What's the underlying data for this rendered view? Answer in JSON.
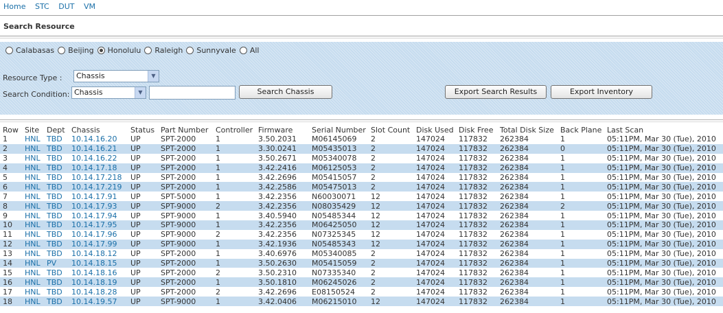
{
  "nav": {
    "items": [
      "Home",
      "STC",
      "DUT",
      "VM"
    ]
  },
  "page": {
    "title": "Search Resource"
  },
  "sites": {
    "options": [
      "Calabasas",
      "Beijing",
      "Honolulu",
      "Raleigh",
      "Sunnyvale",
      "All"
    ],
    "selected": "Honolulu"
  },
  "search": {
    "resource_type_label": "Resource Type :",
    "resource_type_value": "Chassis",
    "condition_label": "Search Condition:",
    "condition_value": "Chassis",
    "condition_text": "",
    "search_button": "Search Chassis",
    "export_results_button": "Export Search Results",
    "export_inventory_button": "Export Inventory"
  },
  "table": {
    "columns": [
      "Row",
      "Site",
      "Dept",
      "Chassis",
      "Status",
      "Part Number",
      "Controller",
      "Firmware",
      "Serial Number",
      "Slot Count",
      "Disk Used",
      "Disk Free",
      "Total Disk Size",
      "Back Plane",
      "Last Scan"
    ],
    "rows": [
      [
        "1",
        "HNL",
        "TBD",
        "10.14.16.20",
        "UP",
        "SPT-2000",
        "1",
        "3.50.2031",
        "M06145069",
        "2",
        "147024",
        "117832",
        "262384",
        "1",
        "05:11PM, Mar 30 (Tue), 2010"
      ],
      [
        "2",
        "HNL",
        "TBD",
        "10.14.16.21",
        "UP",
        "SPT-2000",
        "1",
        "3.30.0241",
        "M05435013",
        "2",
        "147024",
        "117832",
        "262384",
        "0",
        "05:11PM, Mar 30 (Tue), 2010"
      ],
      [
        "3",
        "HNL",
        "TBD",
        "10.14.16.22",
        "UP",
        "SPT-2000",
        "1",
        "3.50.2671",
        "M05340078",
        "2",
        "147024",
        "117832",
        "262384",
        "1",
        "05:11PM, Mar 30 (Tue), 2010"
      ],
      [
        "4",
        "HNL",
        "TBD",
        "10.14.17.18",
        "UP",
        "SPT-2000",
        "1",
        "3.42.2416",
        "M06125053",
        "2",
        "147024",
        "117832",
        "262384",
        "1",
        "05:11PM, Mar 30 (Tue), 2010"
      ],
      [
        "5",
        "HNL",
        "TBD",
        "10.14.17.218",
        "UP",
        "SPT-2000",
        "1",
        "3.42.2696",
        "M05415057",
        "2",
        "147024",
        "117832",
        "262384",
        "1",
        "05:11PM, Mar 30 (Tue), 2010"
      ],
      [
        "6",
        "HNL",
        "TBD",
        "10.14.17.219",
        "UP",
        "SPT-2000",
        "1",
        "3.42.2586",
        "M05475013",
        "2",
        "147024",
        "117832",
        "262384",
        "1",
        "05:11PM, Mar 30 (Tue), 2010"
      ],
      [
        "7",
        "HNL",
        "TBD",
        "10.14.17.91",
        "UP",
        "SPT-5000",
        "1",
        "3.42.2356",
        "N60030071",
        "12",
        "147024",
        "117832",
        "262384",
        "1",
        "05:11PM, Mar 30 (Tue), 2010"
      ],
      [
        "8",
        "HNL",
        "TBD",
        "10.14.17.93",
        "UP",
        "SPT-9000",
        "2",
        "3.42.2356",
        "N08035429",
        "12",
        "147024",
        "117832",
        "262384",
        "2",
        "05:11PM, Mar 30 (Tue), 2010"
      ],
      [
        "9",
        "HNL",
        "TBD",
        "10.14.17.94",
        "UP",
        "SPT-9000",
        "1",
        "3.40.5940",
        "N05485344",
        "12",
        "147024",
        "117832",
        "262384",
        "1",
        "05:11PM, Mar 30 (Tue), 2010"
      ],
      [
        "10",
        "HNL",
        "TBD",
        "10.14.17.95",
        "UP",
        "SPT-9000",
        "1",
        "3.42.2356",
        "M06425050",
        "12",
        "147024",
        "117832",
        "262384",
        "1",
        "05:11PM, Mar 30 (Tue), 2010"
      ],
      [
        "11",
        "HNL",
        "TBD",
        "10.14.17.96",
        "UP",
        "SPT-9000",
        "2",
        "3.42.2356",
        "N07325345",
        "12",
        "147024",
        "117832",
        "262384",
        "1",
        "05:11PM, Mar 30 (Tue), 2010"
      ],
      [
        "12",
        "HNL",
        "TBD",
        "10.14.17.99",
        "UP",
        "SPT-9000",
        "1",
        "3.42.1936",
        "N05485343",
        "12",
        "147024",
        "117832",
        "262384",
        "1",
        "05:11PM, Mar 30 (Tue), 2010"
      ],
      [
        "13",
        "HNL",
        "TBD",
        "10.14.18.12",
        "UP",
        "SPT-2000",
        "1",
        "3.40.6976",
        "M05340085",
        "2",
        "147024",
        "117832",
        "262384",
        "1",
        "05:11PM, Mar 30 (Tue), 2010"
      ],
      [
        "14",
        "HNL",
        "PV",
        "10.14.18.15",
        "UP",
        "SPT-2000",
        "1",
        "3.50.2630",
        "M05415059",
        "2",
        "147024",
        "117832",
        "262384",
        "1",
        "05:11PM, Mar 30 (Tue), 2010"
      ],
      [
        "15",
        "HNL",
        "TBD",
        "10.14.18.16",
        "UP",
        "SPT-2000",
        "2",
        "3.50.2310",
        "N07335340",
        "2",
        "147024",
        "117832",
        "262384",
        "1",
        "05:11PM, Mar 30 (Tue), 2010"
      ],
      [
        "16",
        "HNL",
        "TBD",
        "10.14.18.19",
        "UP",
        "SPT-2000",
        "1",
        "3.50.1810",
        "M06245026",
        "2",
        "147024",
        "117832",
        "262384",
        "1",
        "05:11PM, Mar 30 (Tue), 2010"
      ],
      [
        "17",
        "HNL",
        "TBD",
        "10.14.18.28",
        "UP",
        "SPT-2000",
        "2",
        "3.42.2696",
        "E08150524",
        "2",
        "147024",
        "117832",
        "262384",
        "1",
        "05:11PM, Mar 30 (Tue), 2010"
      ],
      [
        "18",
        "HNL",
        "TBD",
        "10.14.19.57",
        "UP",
        "SPT-9000",
        "1",
        "3.42.0406",
        "M06215010",
        "12",
        "147024",
        "117832",
        "262384",
        "1",
        "05:11PM, Mar 30 (Tue), 2010"
      ]
    ]
  }
}
